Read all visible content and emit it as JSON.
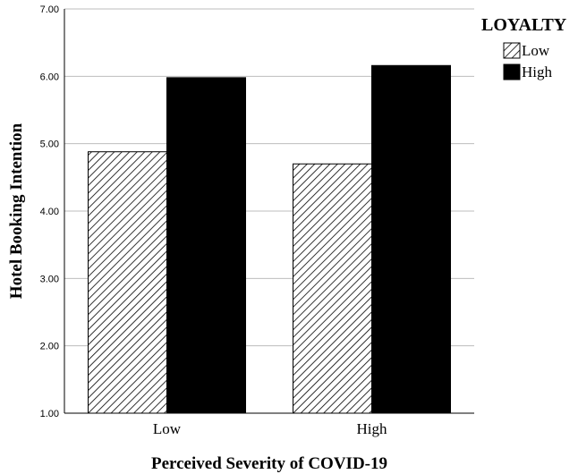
{
  "chart_data": {
    "type": "bar",
    "categories": [
      "Low",
      "High"
    ],
    "series": [
      {
        "name": "Low",
        "values": [
          4.88,
          4.7
        ],
        "fill": "hatch"
      },
      {
        "name": "High",
        "values": [
          5.98,
          6.16
        ],
        "fill": "#000000"
      }
    ],
    "title": "",
    "xlabel": "Perceived Severity of COVID-19",
    "ylabel": "Hotel Booking Intention",
    "ylim": [
      1.0,
      7.0
    ],
    "yticks": [
      "1.00",
      "2.00",
      "3.00",
      "4.00",
      "5.00",
      "6.00",
      "7.00"
    ],
    "grid": true,
    "legend": {
      "title": "LOYALTY",
      "position": "top-right"
    }
  }
}
